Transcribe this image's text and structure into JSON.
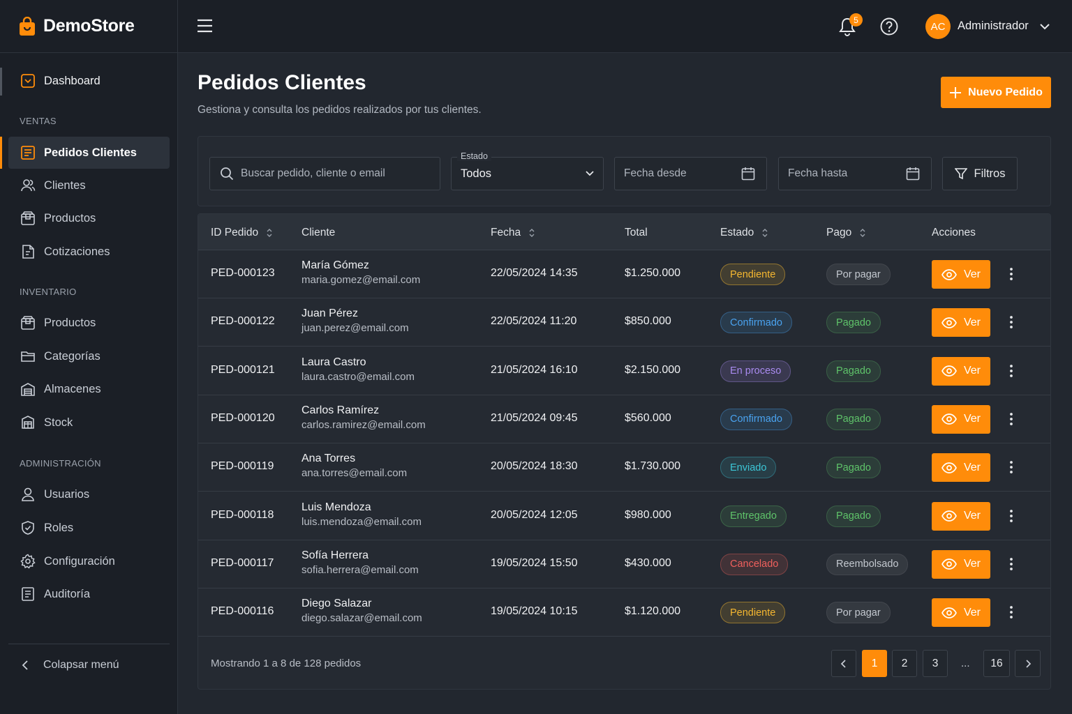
{
  "brand": {
    "name": "DemoStore"
  },
  "sidebar": {
    "dashboard": "Dashboard",
    "sections": [
      "VENTAS",
      "INVENTARIO",
      "ADMINISTRACIÓN"
    ],
    "items": [
      {
        "label": "Pedidos Clientes",
        "icon": "orders-icon",
        "active": true
      },
      {
        "label": "Clientes",
        "icon": "users-icon"
      },
      {
        "label": "Productos",
        "icon": "box-icon"
      },
      {
        "label": "Cotizaciones",
        "icon": "quote-icon"
      },
      {
        "label": "Productos",
        "icon": "box-icon"
      },
      {
        "label": "Categorías",
        "icon": "folder-icon"
      },
      {
        "label": "Almacenes",
        "icon": "warehouse-icon"
      },
      {
        "label": "Stock",
        "icon": "stock-icon"
      },
      {
        "label": "Usuarios",
        "icon": "user-icon"
      },
      {
        "label": "Roles",
        "icon": "shield-icon"
      },
      {
        "label": "Configuración",
        "icon": "gear-icon"
      },
      {
        "label": "Auditoría",
        "icon": "audit-icon"
      }
    ],
    "collapse": "Colapsar menú"
  },
  "header": {
    "notifications": "5",
    "avatar": "AC",
    "user": "Administrador"
  },
  "page": {
    "title": "Pedidos Clientes",
    "subtitle": "Gestiona y consulta los pedidos realizados por tus clientes.",
    "new_button": "Nuevo Pedido"
  },
  "filters": {
    "search_placeholder": "Buscar pedido, cliente o email",
    "estado_label": "Estado",
    "estado_value": "Todos",
    "date_from": "Fecha desde",
    "date_to": "Fecha hasta",
    "filters_button": "Filtros"
  },
  "table": {
    "columns": [
      "ID Pedido",
      "Cliente",
      "Fecha",
      "Total",
      "Estado",
      "Pago",
      "Acciones"
    ],
    "view_label": "Ver",
    "rows": [
      {
        "id": "PED-000123",
        "name": "María Gómez",
        "email": "maria.gomez@email.com",
        "date": "22/05/2024 14:35",
        "total": "$1.250.000",
        "estado": "Pendiente",
        "pago": "Por pagar"
      },
      {
        "id": "PED-000122",
        "name": "Juan Pérez",
        "email": "juan.perez@email.com",
        "date": "22/05/2024 11:20",
        "total": "$850.000",
        "estado": "Confirmado",
        "pago": "Pagado"
      },
      {
        "id": "PED-000121",
        "name": "Laura Castro",
        "email": "laura.castro@email.com",
        "date": "21/05/2024 16:10",
        "total": "$2.150.000",
        "estado": "En proceso",
        "pago": "Pagado"
      },
      {
        "id": "PED-000120",
        "name": "Carlos Ramírez",
        "email": "carlos.ramirez@email.com",
        "date": "21/05/2024 09:45",
        "total": "$560.000",
        "estado": "Confirmado",
        "pago": "Pagado"
      },
      {
        "id": "PED-000119",
        "name": "Ana Torres",
        "email": "ana.torres@email.com",
        "date": "20/05/2024 18:30",
        "total": "$1.730.000",
        "estado": "Enviado",
        "pago": "Pagado"
      },
      {
        "id": "PED-000118",
        "name": "Luis Mendoza",
        "email": "luis.mendoza@email.com",
        "date": "20/05/2024 12:05",
        "total": "$980.000",
        "estado": "Entregado",
        "pago": "Pagado"
      },
      {
        "id": "PED-000117",
        "name": "Sofía Herrera",
        "email": "sofia.herrera@email.com",
        "date": "19/05/2024 15:50",
        "total": "$430.000",
        "estado": "Cancelado",
        "pago": "Reembolsado"
      },
      {
        "id": "PED-000116",
        "name": "Diego Salazar",
        "email": "diego.salazar@email.com",
        "date": "19/05/2024 10:15",
        "total": "$1.120.000",
        "estado": "Pendiente",
        "pago": "Por pagar"
      }
    ],
    "footer": "Mostrando 1 a 8 de 128 pedidos",
    "pages": [
      "1",
      "2",
      "3",
      "...",
      "16"
    ],
    "current_page": "1"
  },
  "colors": {
    "accent": "#ff8c0a",
    "pendiente": "#f5b731",
    "confirmado": "#4aa3f0",
    "en_proceso": "#a98bf0",
    "enviado": "#3cc6d6",
    "entregado": "#5fc46a",
    "cancelado": "#f0605d",
    "pagado": "#5fc46a",
    "neutral": "#c4c9d0"
  }
}
